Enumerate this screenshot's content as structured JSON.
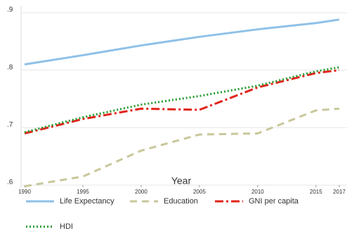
{
  "chart_data": {
    "type": "line",
    "x_label": "Year",
    "x": [
      1990,
      1995,
      2000,
      2005,
      2010,
      2015,
      2017
    ],
    "xlim": [
      1990,
      2017
    ],
    "xticks": [
      1990,
      1995,
      2000,
      2005,
      2010,
      2015,
      2017
    ],
    "ylim": [
      0.6,
      0.9
    ],
    "yticks": [
      {
        "value": 0.6,
        "label": ".6"
      },
      {
        "value": 0.7,
        "label": ".7"
      },
      {
        "value": 0.8,
        "label": ".8"
      },
      {
        "value": 0.9,
        "label": ".9"
      }
    ],
    "grid": true,
    "legend": "bottom",
    "series": [
      {
        "name": "Life Expectancy",
        "color": "#8fc1e8",
        "dash": "solid",
        "values": [
          0.81,
          0.826,
          0.843,
          0.858,
          0.871,
          0.882,
          0.888
        ]
      },
      {
        "name": "Education",
        "color": "#c9c79b",
        "dash": "dashed",
        "values": [
          0.598,
          0.615,
          0.66,
          0.688,
          0.69,
          0.73,
          0.733
        ]
      },
      {
        "name": "GNI per capita",
        "color": "#e2231a",
        "dash": "dashdot",
        "values": [
          0.69,
          0.715,
          0.733,
          0.731,
          0.77,
          0.795,
          0.8
        ]
      },
      {
        "name": "HDI",
        "color": "#249a2c",
        "dash": "dotted",
        "values": [
          0.692,
          0.718,
          0.74,
          0.755,
          0.773,
          0.798,
          0.805
        ]
      }
    ]
  }
}
